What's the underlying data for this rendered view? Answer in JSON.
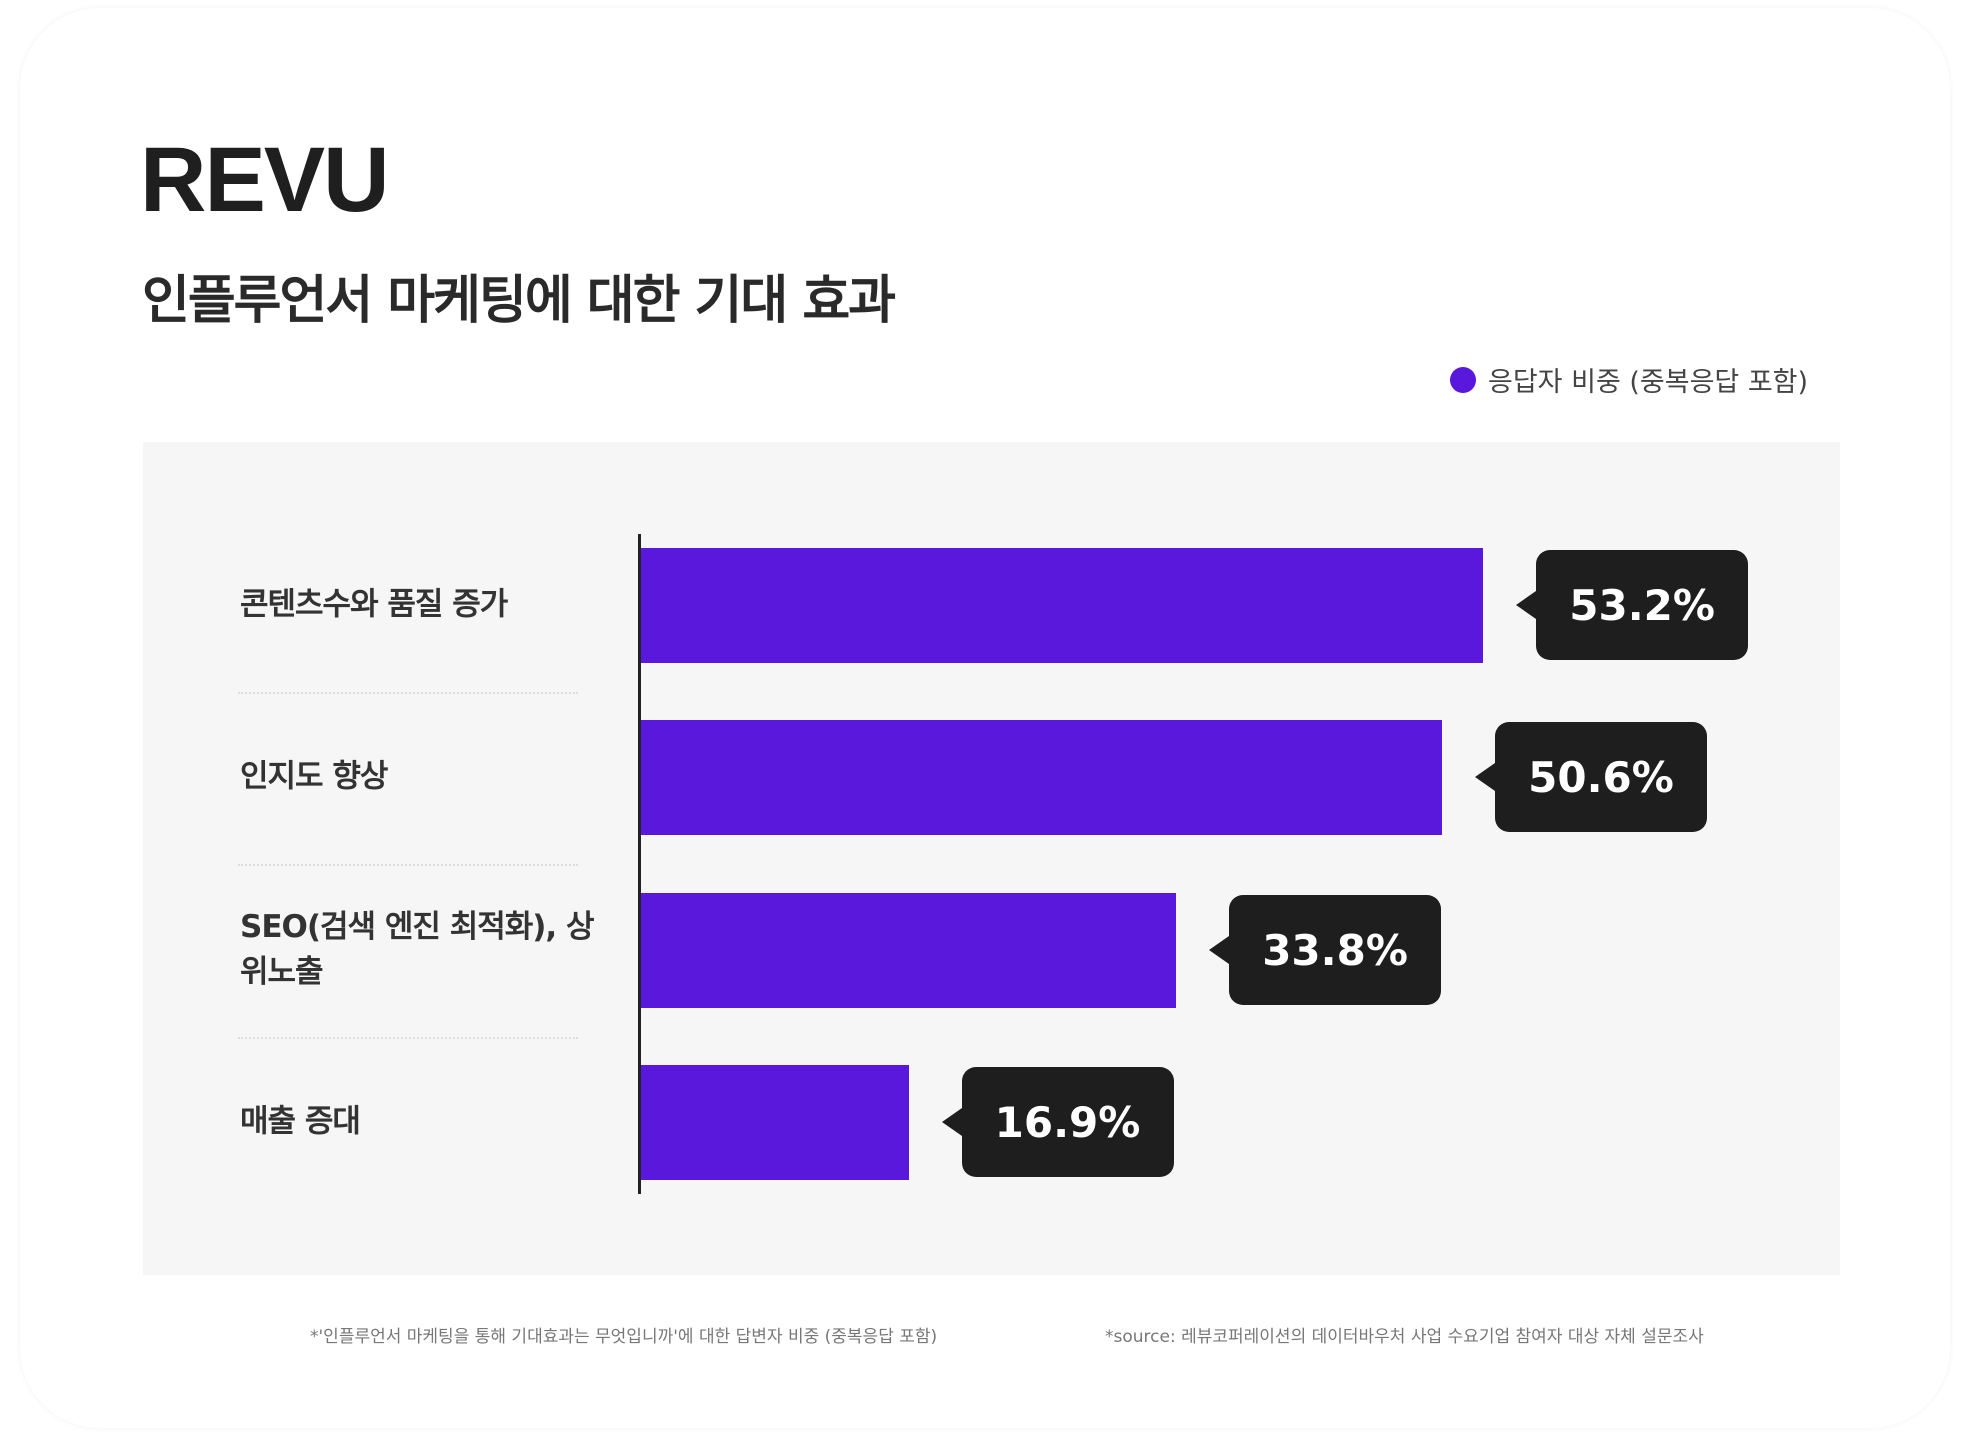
{
  "logo": "REVU",
  "title": "인플루언서 마케팅에 대한 기대 효과",
  "colors": {
    "bar": "#5b18dd",
    "tooltip": "#1e1e1e"
  },
  "footnotes": [
    "*'인플루언서 마케팅을 통해 기대효과는 무엇입니까'에 대한 답변자 비중 (중복응답 포함)",
    "*source: 레뷰코퍼레이션의 데이터바우처 사업 수요기업 참여자 대상 자체 설문조사"
  ],
  "chart_data": {
    "type": "bar",
    "orientation": "horizontal",
    "title": "인플루언서 마케팅에 대한 기대 효과",
    "legend": {
      "label": "응답자 비중 (중복응답 포함)",
      "placement": "top-right"
    },
    "categories": [
      "콘텐츠수와 품질 증가",
      "인지도 향상",
      "SEO(검색 엔진 최적화), 상위노출",
      "매출 증대"
    ],
    "values": [
      53.2,
      50.6,
      33.8,
      16.9
    ],
    "labels": [
      "53.2%",
      "50.6%",
      "33.8%",
      "16.9%"
    ],
    "unit": "%",
    "xlim": [
      0,
      100
    ],
    "grid": false
  }
}
